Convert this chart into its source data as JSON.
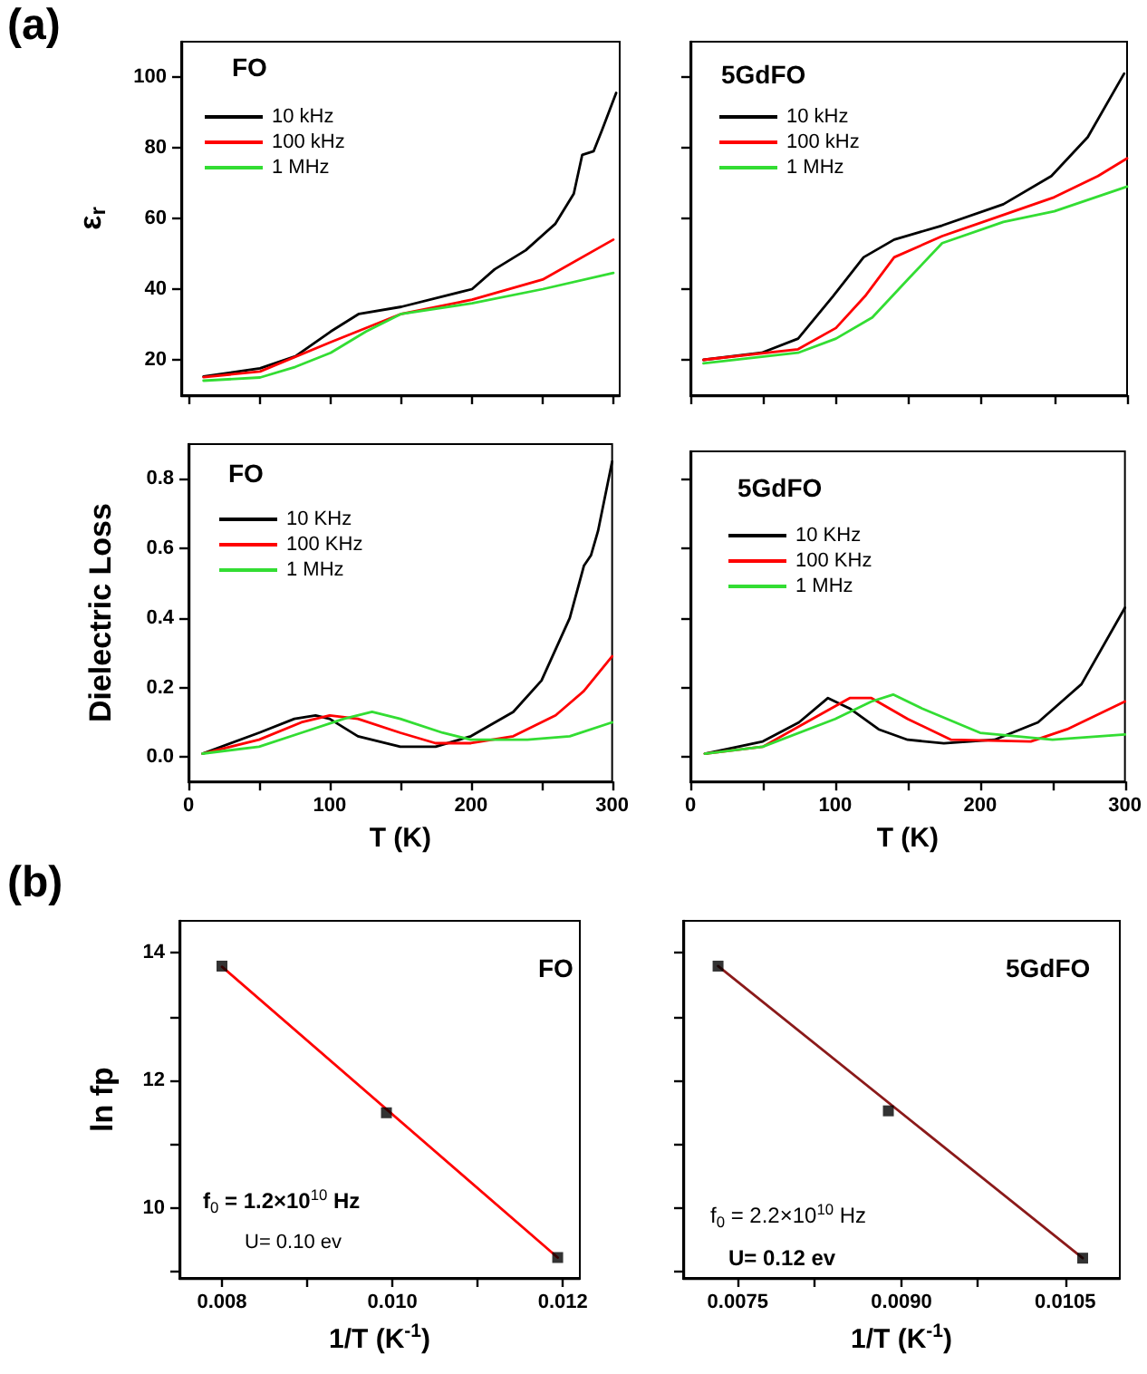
{
  "chart_data": [
    {
      "type": "line",
      "title": "FO",
      "ylabel": "ε$_{r}$",
      "annotations": [
        "(a)"
      ],
      "xlim": [
        -5.8,
        304.5
      ],
      "xticks": [
        0,
        {
          "value": 50,
          "label": null
        },
        100,
        {
          "value": 150,
          "label": null
        },
        200,
        {
          "value": 250,
          "label": null
        },
        300
      ],
      "ylim": [
        10,
        110
      ],
      "yticks": [
        20,
        40,
        60,
        80,
        100
      ],
      "tick_labels": "y",
      "grid": false,
      "legend": "top left",
      "series": [
        {
          "name": "10 kHz",
          "color": "#000000",
          "x": [
            10,
            50,
            75,
            100,
            120,
            150,
            200,
            216,
            238,
            259,
            272,
            278,
            286,
            292,
            302
          ],
          "values": [
            15.3,
            17.6,
            21,
            28,
            33,
            35,
            40,
            45.6,
            51,
            58.5,
            67,
            78,
            79,
            85,
            95.5
          ]
        },
        {
          "name": "100 kHz",
          "color": "#ff0000",
          "x": [
            10,
            50,
            100,
            150,
            200,
            250,
            300
          ],
          "values": [
            15.1,
            16.7,
            25,
            33,
            37,
            42.7,
            54
          ]
        },
        {
          "name": "1 MHz",
          "color": "#33dd33",
          "x": [
            10,
            50,
            75,
            100,
            125,
            150,
            200,
            250,
            300
          ],
          "values": [
            14.1,
            15,
            18,
            22,
            28,
            33,
            36,
            40,
            44.6
          ]
        }
      ]
    },
    {
      "type": "line",
      "title": "5GdFO",
      "xlim": [
        0,
        300
      ],
      "xticks": [
        0,
        {
          "value": 50,
          "label": null
        },
        100,
        {
          "value": 150,
          "label": null
        },
        200,
        {
          "value": 250,
          "label": null
        },
        300
      ],
      "ylim": [
        10,
        110
      ],
      "yticks": [
        20,
        40,
        60,
        80,
        100
      ],
      "tick_labels": false,
      "grid": false,
      "legend": "top left",
      "series": [
        {
          "name": "10 kHz",
          "color": "#000000",
          "x": [
            9,
            49,
            74,
            98,
            119,
            140,
            173,
            215,
            248,
            273,
            298
          ],
          "values": [
            20,
            22,
            26,
            38,
            49,
            54,
            58,
            64,
            72,
            83,
            101
          ]
        },
        {
          "name": "100 kHz",
          "color": "#ff0000",
          "x": [
            9,
            74,
            100,
            120,
            140,
            173,
            215,
            250,
            280,
            300
          ],
          "values": [
            20,
            23,
            29,
            38,
            49,
            55,
            61,
            66,
            72,
            77
          ]
        },
        {
          "name": "1 MHz",
          "color": "#33dd33",
          "x": [
            9,
            74,
            100,
            125,
            150,
            173,
            215,
            250,
            300
          ],
          "values": [
            19,
            22,
            26,
            32,
            43,
            53,
            59,
            62,
            69
          ]
        }
      ]
    },
    {
      "type": "line",
      "title": "FO",
      "xlabel": "T (K)",
      "ylabel": "Dielectric Loss",
      "xlim": [
        0,
        300
      ],
      "xticks": [
        0,
        {
          "value": 50,
          "label": null
        },
        100,
        {
          "value": 150,
          "label": null
        },
        200,
        {
          "value": 250,
          "label": null
        },
        300
      ],
      "ylim": [
        -0.07,
        0.9
      ],
      "yticks": [
        {
          "value": 0,
          "label": "0.0"
        },
        0.2,
        0.4,
        0.6,
        0.8
      ],
      "grid": false,
      "legend": "top left",
      "series": [
        {
          "name": "10 KHz",
          "color": "#000000",
          "x": [
            10,
            50,
            75,
            90,
            100,
            120,
            150,
            175,
            200,
            230,
            250,
            270,
            280,
            285,
            290,
            300
          ],
          "values": [
            0.01,
            0.07,
            0.11,
            0.12,
            0.11,
            0.06,
            0.03,
            0.03,
            0.06,
            0.13,
            0.22,
            0.4,
            0.55,
            0.58,
            0.65,
            0.85
          ]
        },
        {
          "name": "100 KHz",
          "color": "#ff0000",
          "x": [
            10,
            50,
            80,
            100,
            120,
            150,
            175,
            200,
            230,
            260,
            280,
            300
          ],
          "values": [
            0.01,
            0.05,
            0.1,
            0.12,
            0.11,
            0.07,
            0.04,
            0.04,
            0.06,
            0.12,
            0.19,
            0.29
          ]
        },
        {
          "name": "1 MHz",
          "color": "#33dd33",
          "x": [
            10,
            50,
            80,
            110,
            130,
            150,
            180,
            200,
            240,
            270,
            300
          ],
          "values": [
            0.01,
            0.03,
            0.07,
            0.11,
            0.13,
            0.11,
            0.07,
            0.05,
            0.05,
            0.06,
            0.1
          ]
        }
      ]
    },
    {
      "type": "line",
      "title": "5GdFO",
      "xlabel": "T (K)",
      "xlim": [
        0,
        300
      ],
      "xticks": [
        0,
        {
          "value": 50,
          "label": null
        },
        100,
        {
          "value": 150,
          "label": null
        },
        200,
        {
          "value": 250,
          "label": null
        },
        300
      ],
      "ylim": [
        -0.07,
        0.88
      ],
      "yticks": [
        0,
        0.2,
        0.4,
        0.6,
        0.8
      ],
      "tick_labels": "x",
      "grid": false,
      "legend": "top left",
      "series": [
        {
          "name": "10 KHz",
          "color": "#000000",
          "x": [
            10,
            50,
            75,
            95,
            110,
            130,
            150,
            175,
            210,
            240,
            270,
            300
          ],
          "values": [
            0.01,
            0.045,
            0.1,
            0.17,
            0.14,
            0.08,
            0.05,
            0.04,
            0.05,
            0.1,
            0.21,
            0.43
          ]
        },
        {
          "name": "100 KHz",
          "color": "#ff0000",
          "x": [
            10,
            50,
            80,
            110,
            125,
            150,
            180,
            235,
            260,
            300
          ],
          "values": [
            0.01,
            0.03,
            0.1,
            0.17,
            0.17,
            0.11,
            0.05,
            0.045,
            0.08,
            0.16
          ]
        },
        {
          "name": "1 MHz",
          "color": "#33dd33",
          "x": [
            10,
            50,
            100,
            125,
            140,
            160,
            200,
            250,
            300
          ],
          "values": [
            0.01,
            0.03,
            0.11,
            0.16,
            0.18,
            0.14,
            0.07,
            0.05,
            0.065
          ]
        }
      ]
    },
    {
      "type": "scatter",
      "title": "FO",
      "xlabel": "1/T (K$^{-1}$)",
      "ylabel": "ln fp",
      "annotations": [
        "(b)",
        "f$_{0}$ = 1.2×10$^{10}$ Hz",
        "U= 0.10 ev"
      ],
      "xlim": [
        0.0075,
        0.0122
      ],
      "xticks": [
        0.008,
        {
          "value": 0.009,
          "label": null
        },
        {
          "value": 0.01,
          "label": "0.010"
        },
        {
          "value": 0.011,
          "label": null
        },
        {
          "value": 0.012,
          "label": "0.012"
        }
      ],
      "ylim": [
        8.9,
        14.5
      ],
      "yticks": [
        {
          "value": 9,
          "label": null
        },
        10,
        {
          "value": 11,
          "label": null
        },
        12,
        {
          "value": 13,
          "label": null
        },
        14
      ],
      "grid": false,
      "legend": false,
      "series": [
        {
          "color": "#000000",
          "marker": "square",
          "x": [
            0.008,
            0.00993,
            0.01194
          ],
          "values": [
            13.79,
            11.49,
            9.22
          ]
        },
        {
          "type": "line",
          "color": "#ff0000",
          "x": [
            0.008,
            0.01194
          ],
          "values": [
            13.78,
            9.22
          ]
        }
      ]
    },
    {
      "type": "scatter",
      "title": "5GdFO",
      "xlabel": "1/T (K$^{-1}$)",
      "annotations": [
        "f$_{0}$ = 2.2×10$^{10}$ Hz",
        "U= 0.12 ev"
      ],
      "xlim": [
        0.007,
        0.011
      ],
      "xticks": [
        {
          "value": 0.0075,
          "label": "0.0075"
        },
        {
          "value": 0.0082,
          "label": null
        },
        {
          "value": 0.009,
          "label": "0.0090"
        },
        {
          "value": 0.0097,
          "label": null
        },
        {
          "value": 0.0105,
          "label": "0.0105"
        }
      ],
      "ylim": [
        8.9,
        14.5
      ],
      "yticks": [
        9,
        10,
        11,
        12,
        13,
        14
      ],
      "tick_labels": "x",
      "grid": false,
      "legend": false,
      "series": [
        {
          "color": "#000000",
          "marker": "square",
          "x": [
            0.00732,
            0.00888,
            0.01066
          ],
          "values": [
            13.79,
            11.52,
            9.21
          ]
        },
        {
          "type": "line",
          "color": "#8b1a1a",
          "x": [
            0.00732,
            0.01066
          ],
          "values": [
            13.79,
            9.21
          ]
        }
      ]
    }
  ]
}
